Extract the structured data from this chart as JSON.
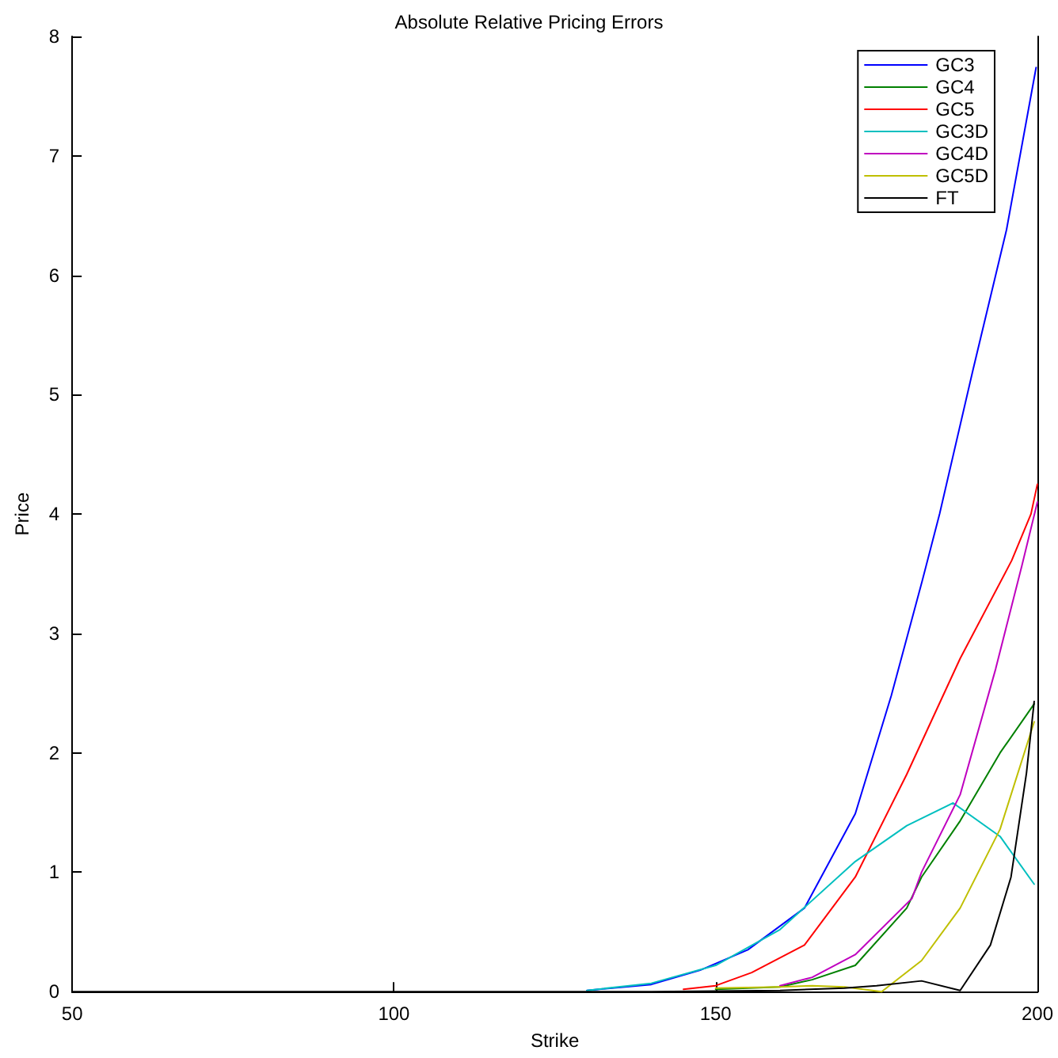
{
  "chart_data": {
    "type": "line",
    "title": "Absolute Relative Pricing Errors",
    "xlabel": "Strike",
    "ylabel": "Price",
    "xlim": [
      50,
      200
    ],
    "xticks": [
      50,
      100,
      150,
      200
    ],
    "ylim": [
      0,
      8
    ],
    "yticks": [
      0,
      1,
      2,
      3,
      4,
      5,
      6,
      7,
      8
    ],
    "grid": false,
    "legend": "top right",
    "marker": "none",
    "line_style": "solid",
    "series": [
      {
        "name": "GC3",
        "color": "#0000ff",
        "x": [
          130,
          140,
          147.6,
          155,
          163.8,
          171.7,
          177.3,
          182.1,
          184.8,
          190,
          195.2,
          199.8
        ],
        "values": [
          0.01,
          0.06,
          0.18,
          0.35,
          0.7,
          1.49,
          2.48,
          3.44,
          4.0,
          5.21,
          6.38,
          7.74
        ]
      },
      {
        "name": "GC4",
        "color": "#008000",
        "x": [
          150,
          160,
          165,
          171.7,
          179.7,
          182,
          188,
          194.2,
          199.5
        ],
        "values": [
          0.02,
          0.04,
          0.1,
          0.22,
          0.7,
          0.96,
          1.43,
          2.0,
          2.41
        ]
      },
      {
        "name": "GC5",
        "color": "#ff0000",
        "x": [
          145,
          150,
          155.6,
          163.8,
          171.7,
          179.7,
          188,
          196,
          199,
          200
        ],
        "values": [
          0.02,
          0.05,
          0.16,
          0.39,
          0.96,
          1.82,
          2.79,
          3.61,
          4.0,
          4.25
        ]
      },
      {
        "name": "GC3D",
        "color": "#00bfbf",
        "x": [
          130,
          140,
          150,
          160,
          171.7,
          179.7,
          186.9,
          194.2,
          199.5
        ],
        "values": [
          0.01,
          0.07,
          0.22,
          0.52,
          1.09,
          1.39,
          1.58,
          1.3,
          0.9
        ]
      },
      {
        "name": "GC4D",
        "color": "#bf00bf",
        "x": [
          160,
          165,
          171.7,
          180.5,
          182,
          188,
          193.5,
          197.6,
          200
        ],
        "values": [
          0.05,
          0.12,
          0.31,
          0.78,
          1.0,
          1.65,
          2.7,
          3.57,
          4.1
        ]
      },
      {
        "name": "GC5D",
        "color": "#bfbf00",
        "x": [
          150,
          160,
          165,
          170,
          175.8,
          182,
          188,
          194.2,
          199.5
        ],
        "values": [
          0.03,
          0.04,
          0.05,
          0.04,
          0,
          0.26,
          0.7,
          1.36,
          2.26
        ]
      },
      {
        "name": "FT",
        "color": "#000000",
        "x": [
          50,
          100,
          120,
          140,
          160,
          170,
          175,
          182,
          188,
          192.7,
          195.9,
          198.3,
          199.5
        ],
        "values": [
          0,
          0,
          0,
          0,
          0.01,
          0.03,
          0.05,
          0.09,
          0.01,
          0.39,
          0.96,
          1.83,
          2.43
        ]
      }
    ]
  }
}
